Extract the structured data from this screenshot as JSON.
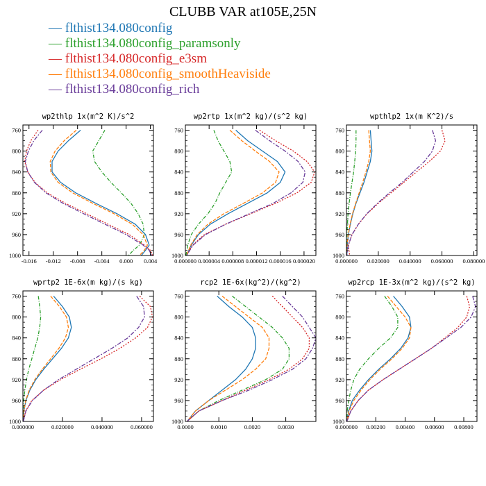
{
  "title": "CLUBB VAR at105E,25N",
  "legend": [
    {
      "label": "— flthist134.080config",
      "color": "#1f77b4"
    },
    {
      "label": "— flthist134.080config_paramsonly",
      "color": "#2ca02c"
    },
    {
      "label": "— flthist134.080config_e3sm",
      "color": "#d62728"
    },
    {
      "label": "— flthist134.080config_smoothHeaviside",
      "color": "#ff7f0e"
    },
    {
      "label": "— flthist134.080config_rich",
      "color": "#6a3d9a"
    }
  ],
  "chart_data": [
    {
      "type": "line",
      "title": "wp2thlp  1x(m^2 K)/s^2",
      "xlim": [
        -0.017,
        0.0045
      ],
      "ylim": [
        1000,
        750
      ],
      "xticks": [
        "-0.016",
        "-0.012",
        "-0.008",
        "-0.004",
        "0.000",
        "0.004"
      ],
      "xtick_values": [
        -0.016,
        -0.012,
        -0.008,
        -0.004,
        0.0,
        0.004
      ],
      "yticks": [
        760,
        800,
        840,
        880,
        920,
        960,
        1000
      ],
      "y": [
        760,
        780,
        800,
        820,
        840,
        860,
        880,
        900,
        920,
        940,
        960,
        980,
        990,
        1000
      ],
      "series": [
        {
          "name": "flthist134.080config",
          "values": [
            -0.0075,
            -0.0095,
            -0.0112,
            -0.0122,
            -0.0122,
            -0.0108,
            -0.0083,
            -0.005,
            -0.0015,
            0.0015,
            0.0032,
            0.0038,
            0.0032,
            0.0025
          ]
        },
        {
          "name": "flthist134.080config_paramsonly",
          "values": [
            -0.0035,
            -0.0045,
            -0.0055,
            -0.0052,
            -0.004,
            -0.0025,
            -0.0008,
            0.0008,
            0.002,
            0.0028,
            0.003,
            0.0022,
            0.0012,
            0.0004
          ]
        },
        {
          "name": "flthist134.080config_e3sm",
          "values": [
            -0.0145,
            -0.0157,
            -0.0164,
            -0.0167,
            -0.0162,
            -0.015,
            -0.013,
            -0.01,
            -0.0065,
            -0.003,
            0.0005,
            0.003,
            0.004,
            0.0044
          ]
        },
        {
          "name": "flthist134.080config_smoothHeaviside",
          "values": [
            -0.0082,
            -0.0102,
            -0.0117,
            -0.0125,
            -0.0124,
            -0.0112,
            -0.0088,
            -0.0055,
            -0.002,
            0.001,
            0.0028,
            0.0035,
            0.003,
            0.0022
          ]
        },
        {
          "name": "flthist134.080config_rich",
          "values": [
            -0.0138,
            -0.0152,
            -0.0161,
            -0.0166,
            -0.0162,
            -0.0151,
            -0.0132,
            -0.0104,
            -0.007,
            -0.0035,
            0.0,
            0.0028,
            0.0038,
            0.0042
          ]
        }
      ]
    },
    {
      "type": "line",
      "title": "wp2rtp  1x(m^2 kg)/(s^2 kg)",
      "xlim": [
        0.0,
        2.2e-05
      ],
      "ylim": [
        1000,
        750
      ],
      "xticks": [
        "0.000000",
        "0.000004",
        "0.000008",
        "0.000012",
        "0.000016",
        "0.000020"
      ],
      "xtick_values": [
        0.0,
        4e-06,
        8e-06,
        1.2e-05,
        1.6e-05,
        2e-05
      ],
      "yticks": [
        760,
        800,
        840,
        880,
        920,
        960,
        1000
      ],
      "y": [
        760,
        780,
        800,
        820,
        840,
        860,
        880,
        900,
        920,
        940,
        960,
        980,
        1000
      ],
      "series": [
        {
          "name": "flthist134.080config",
          "values": [
            8.5e-06,
            1.05e-05,
            1.3e-05,
            1.55e-05,
            1.68e-05,
            1.6e-05,
            1.38e-05,
            1.05e-05,
            7.2e-06,
            4.2e-06,
            2.2e-06,
            1e-06,
            2e-07
          ]
        },
        {
          "name": "flthist134.080config_paramsonly",
          "values": [
            4.8e-06,
            5.5e-06,
            6.5e-06,
            7.5e-06,
            7.8e-06,
            6.8e-06,
            5.8e-06,
            5e-06,
            3.8e-06,
            2.2e-06,
            1e-06,
            4e-07,
            1e-07
          ]
        },
        {
          "name": "flthist134.080config_e3sm",
          "values": [
            1.25e-05,
            1.52e-05,
            1.82e-05,
            2.05e-05,
            2.18e-05,
            2.12e-05,
            1.88e-05,
            1.52e-05,
            1.1e-05,
            6.8e-06,
            3.2e-06,
            1.2e-06,
            2e-07
          ]
        },
        {
          "name": "flthist134.080config_smoothHeaviside",
          "values": [
            7.5e-06,
            9.5e-06,
            1.18e-05,
            1.42e-05,
            1.58e-05,
            1.52e-05,
            1.3e-05,
            9.8e-06,
            6.5e-06,
            3.8e-06,
            2e-06,
            9e-07,
            2e-07
          ]
        },
        {
          "name": "flthist134.080config_rich",
          "values": [
            1.18e-05,
            1.42e-05,
            1.68e-05,
            1.9e-05,
            2.02e-05,
            1.98e-05,
            1.78e-05,
            1.48e-05,
            1.08e-05,
            6.8e-06,
            3.4e-06,
            1.3e-06,
            2e-07
          ]
        }
      ]
    },
    {
      "type": "line",
      "title": "wpthlp2  1x(m K^2)/s",
      "xlim": [
        0.0,
        0.082
      ],
      "ylim": [
        1000,
        750
      ],
      "xticks": [
        "0.000000",
        "0.020000",
        "0.040000",
        "0.060000",
        "0.080000"
      ],
      "xtick_values": [
        0.0,
        0.02,
        0.04,
        0.06,
        0.08
      ],
      "yticks": [
        760,
        800,
        840,
        880,
        920,
        960,
        1000
      ],
      "y": [
        760,
        780,
        800,
        820,
        840,
        860,
        880,
        900,
        920,
        940,
        960,
        980,
        1000
      ],
      "series": [
        {
          "name": "flthist134.080config",
          "values": [
            0.015,
            0.0155,
            0.016,
            0.015,
            0.013,
            0.011,
            0.0085,
            0.006,
            0.004,
            0.0025,
            0.0012,
            0.0005,
            0.0002
          ]
        },
        {
          "name": "flthist134.080config_paramsonly",
          "values": [
            0.006,
            0.006,
            0.0058,
            0.0052,
            0.0045,
            0.0035,
            0.0025,
            0.0017,
            0.001,
            0.0006,
            0.0003,
            0.0001,
            0.0
          ]
        },
        {
          "name": "flthist134.080config_e3sm",
          "values": [
            0.06,
            0.062,
            0.059,
            0.052,
            0.044,
            0.036,
            0.028,
            0.02,
            0.013,
            0.0075,
            0.0035,
            0.0012,
            0.002
          ]
        },
        {
          "name": "flthist134.080config_smoothHeaviside",
          "values": [
            0.014,
            0.0145,
            0.015,
            0.014,
            0.0122,
            0.0102,
            0.008,
            0.0058,
            0.0038,
            0.0023,
            0.0011,
            0.0004,
            0.0001
          ]
        },
        {
          "name": "flthist134.080config_rich",
          "values": [
            0.054,
            0.056,
            0.054,
            0.049,
            0.042,
            0.035,
            0.027,
            0.0195,
            0.0128,
            0.0075,
            0.0035,
            0.0012,
            0.0002
          ]
        }
      ]
    },
    {
      "type": "line",
      "title": "wprtp2  1E-6x(m kg)/(s kg)",
      "xlim": [
        0.0,
        0.066
      ],
      "ylim": [
        1000,
        750
      ],
      "xticks": [
        "0.000000",
        "0.020000",
        "0.040000",
        "0.060000"
      ],
      "xtick_values": [
        0.0,
        0.02,
        0.04,
        0.06
      ],
      "yticks": [
        760,
        800,
        840,
        880,
        920,
        960,
        1000
      ],
      "y": [
        760,
        780,
        800,
        820,
        840,
        860,
        880,
        900,
        920,
        940,
        960,
        980,
        1000
      ],
      "series": [
        {
          "name": "flthist134.080config",
          "values": [
            0.0155,
            0.02,
            0.0235,
            0.0245,
            0.023,
            0.0195,
            0.015,
            0.0105,
            0.0065,
            0.0035,
            0.0015,
            0.0005,
            0.0001
          ]
        },
        {
          "name": "flthist134.080config_paramsonly",
          "values": [
            0.0078,
            0.0085,
            0.009,
            0.0085,
            0.0075,
            0.006,
            0.0045,
            0.003,
            0.0018,
            0.001,
            0.0004,
            0.0001,
            0.0
          ]
        },
        {
          "name": "flthist134.080config_e3sm",
          "values": [
            0.059,
            0.0645,
            0.0655,
            0.063,
            0.057,
            0.049,
            0.0395,
            0.029,
            0.019,
            0.0105,
            0.0045,
            0.0014,
            0.0002
          ]
        },
        {
          "name": "flthist134.080config_smoothHeaviside",
          "values": [
            0.014,
            0.0185,
            0.022,
            0.023,
            0.0215,
            0.0182,
            0.014,
            0.0098,
            0.006,
            0.0032,
            0.0014,
            0.0005,
            0.0001
          ]
        },
        {
          "name": "flthist134.080config_rich",
          "values": [
            0.0575,
            0.061,
            0.0615,
            0.0585,
            0.053,
            0.045,
            0.036,
            0.027,
            0.018,
            0.0105,
            0.0048,
            0.0015,
            0.0002
          ]
        }
      ]
    },
    {
      "type": "line",
      "title": "rcp2  1E-6x(kg^2)/(kg^2)",
      "xlim": [
        0.0,
        0.0039
      ],
      "ylim": [
        1000,
        750
      ],
      "xticks": [
        "0.0000",
        "0.0010",
        "0.0020",
        "0.0030"
      ],
      "xtick_values": [
        0.0,
        0.001,
        0.002,
        0.003
      ],
      "yticks": [
        760,
        800,
        840,
        880,
        920,
        960,
        1000
      ],
      "y": [
        760,
        780,
        800,
        820,
        840,
        860,
        880,
        900,
        920,
        940,
        960,
        980,
        1000
      ],
      "series": [
        {
          "name": "flthist134.080config",
          "values": [
            0.00095,
            0.0013,
            0.0017,
            0.002,
            0.0021,
            0.0021,
            0.002,
            0.0018,
            0.0015,
            0.0011,
            0.0007,
            0.0003,
            5e-05
          ]
        },
        {
          "name": "flthist134.080config_paramsonly",
          "values": [
            0.0014,
            0.0018,
            0.0022,
            0.0026,
            0.0029,
            0.0031,
            0.0031,
            0.0029,
            0.0024,
            0.0017,
            0.001,
            0.0004,
            5e-05
          ]
        },
        {
          "name": "flthist134.080config_e3sm",
          "values": [
            0.0026,
            0.0029,
            0.0032,
            0.0035,
            0.0037,
            0.0037,
            0.0035,
            0.0031,
            0.0025,
            0.0018,
            0.0011,
            0.0004,
            5e-05
          ]
        },
        {
          "name": "flthist134.080config_smoothHeaviside",
          "values": [
            0.0011,
            0.0015,
            0.0019,
            0.0023,
            0.0025,
            0.0025,
            0.0024,
            0.0021,
            0.0017,
            0.0012,
            0.0007,
            0.0003,
            5e-05
          ]
        },
        {
          "name": "flthist134.080config_rich",
          "values": [
            0.0029,
            0.0032,
            0.0035,
            0.0037,
            0.0039,
            0.0038,
            0.0036,
            0.0032,
            0.0026,
            0.0019,
            0.0011,
            0.0004,
            5e-05
          ]
        }
      ]
    },
    {
      "type": "line",
      "title": "wp2rcp  1E-3x(m^2 kg)/(s^2 kg)",
      "xlim": [
        0.0,
        0.0089
      ],
      "ylim": [
        1000,
        750
      ],
      "xticks": [
        "0.000000",
        "0.00200",
        "0.00400",
        "0.00600",
        "0.00800"
      ],
      "xtick_values": [
        0.0,
        0.002,
        0.004,
        0.006,
        0.008
      ],
      "yticks": [
        760,
        800,
        840,
        880,
        920,
        960,
        1000
      ],
      "y": [
        760,
        780,
        800,
        820,
        840,
        860,
        880,
        900,
        920,
        940,
        960,
        980,
        1000
      ],
      "series": [
        {
          "name": "flthist134.080config",
          "values": [
            0.0032,
            0.0038,
            0.0043,
            0.0044,
            0.0042,
            0.0037,
            0.003,
            0.0022,
            0.0015,
            0.0009,
            0.0004,
            0.00015,
            3e-05
          ]
        },
        {
          "name": "flthist134.080config_paramsonly",
          "values": [
            0.0026,
            0.0031,
            0.0035,
            0.0035,
            0.003,
            0.0022,
            0.0015,
            0.0009,
            0.0005,
            0.0003,
            0.00015,
            5e-05,
            1e-05
          ]
        },
        {
          "name": "flthist134.080config_e3sm",
          "values": [
            0.0082,
            0.0084,
            0.0082,
            0.0076,
            0.0067,
            0.0058,
            0.0047,
            0.0036,
            0.0025,
            0.0015,
            0.0008,
            0.0003,
            3e-05
          ]
        },
        {
          "name": "flthist134.080config_smoothHeaviside",
          "values": [
            0.0028,
            0.0034,
            0.004,
            0.0044,
            0.0043,
            0.0038,
            0.0031,
            0.0023,
            0.0016,
            0.001,
            0.0005,
            0.00018,
            3e-05
          ]
        },
        {
          "name": "flthist134.080config_rich",
          "values": [
            0.0086,
            0.0088,
            0.0085,
            0.0078,
            0.0068,
            0.0058,
            0.0047,
            0.0036,
            0.0025,
            0.0015,
            0.0008,
            0.0003,
            3e-05
          ]
        }
      ]
    }
  ]
}
